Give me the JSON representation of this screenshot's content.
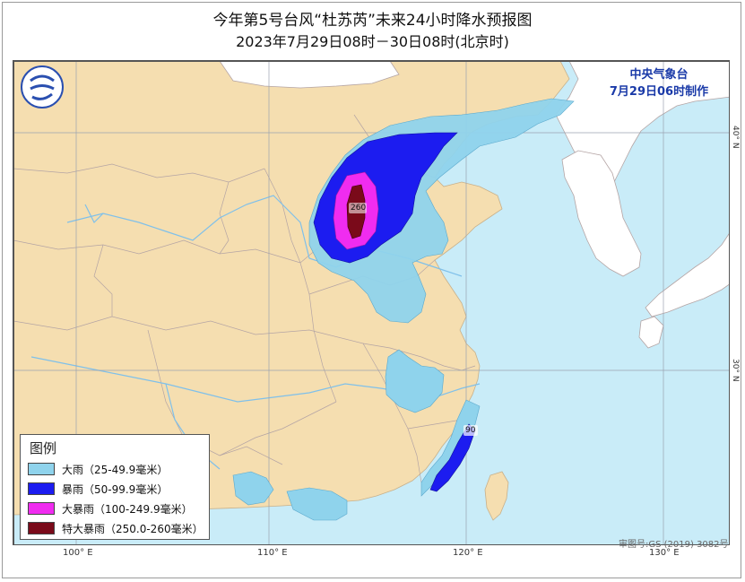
{
  "title": {
    "line1": "今年第5号台风“杜苏芮”未来24小时降水预报图",
    "line2": "2023年7月29日08时－30日08时(北京时)"
  },
  "issuer": {
    "org": "中央气象台",
    "time": "7月29日06时制作"
  },
  "axes": {
    "lon_labels": [
      "100° E",
      "110° E",
      "120° E",
      "130° E"
    ],
    "lat_labels": [
      "40° N",
      "30° N"
    ]
  },
  "legend": {
    "title": "图例",
    "items": [
      {
        "label": "大雨（25-49.9毫米）",
        "color": "#8fd3ec"
      },
      {
        "label": "暴雨（50-99.9毫米）",
        "color": "#1c1cf0"
      },
      {
        "label": "大暴雨（100-249.9毫米）",
        "color": "#f02cf0"
      },
      {
        "label": "特大暴雨（250.0-260毫米）",
        "color": "#7a0a1a"
      }
    ]
  },
  "map_values": {
    "north_china_max": "260",
    "fujian_max": "90"
  },
  "map_number": "审图号:GS (2019) 3082号",
  "colors": {
    "land": "#f5deb0",
    "sea": "#c9ecf8",
    "foreign": "#ffffff",
    "border": "#b4a4a4",
    "river": "#88c8ec"
  }
}
